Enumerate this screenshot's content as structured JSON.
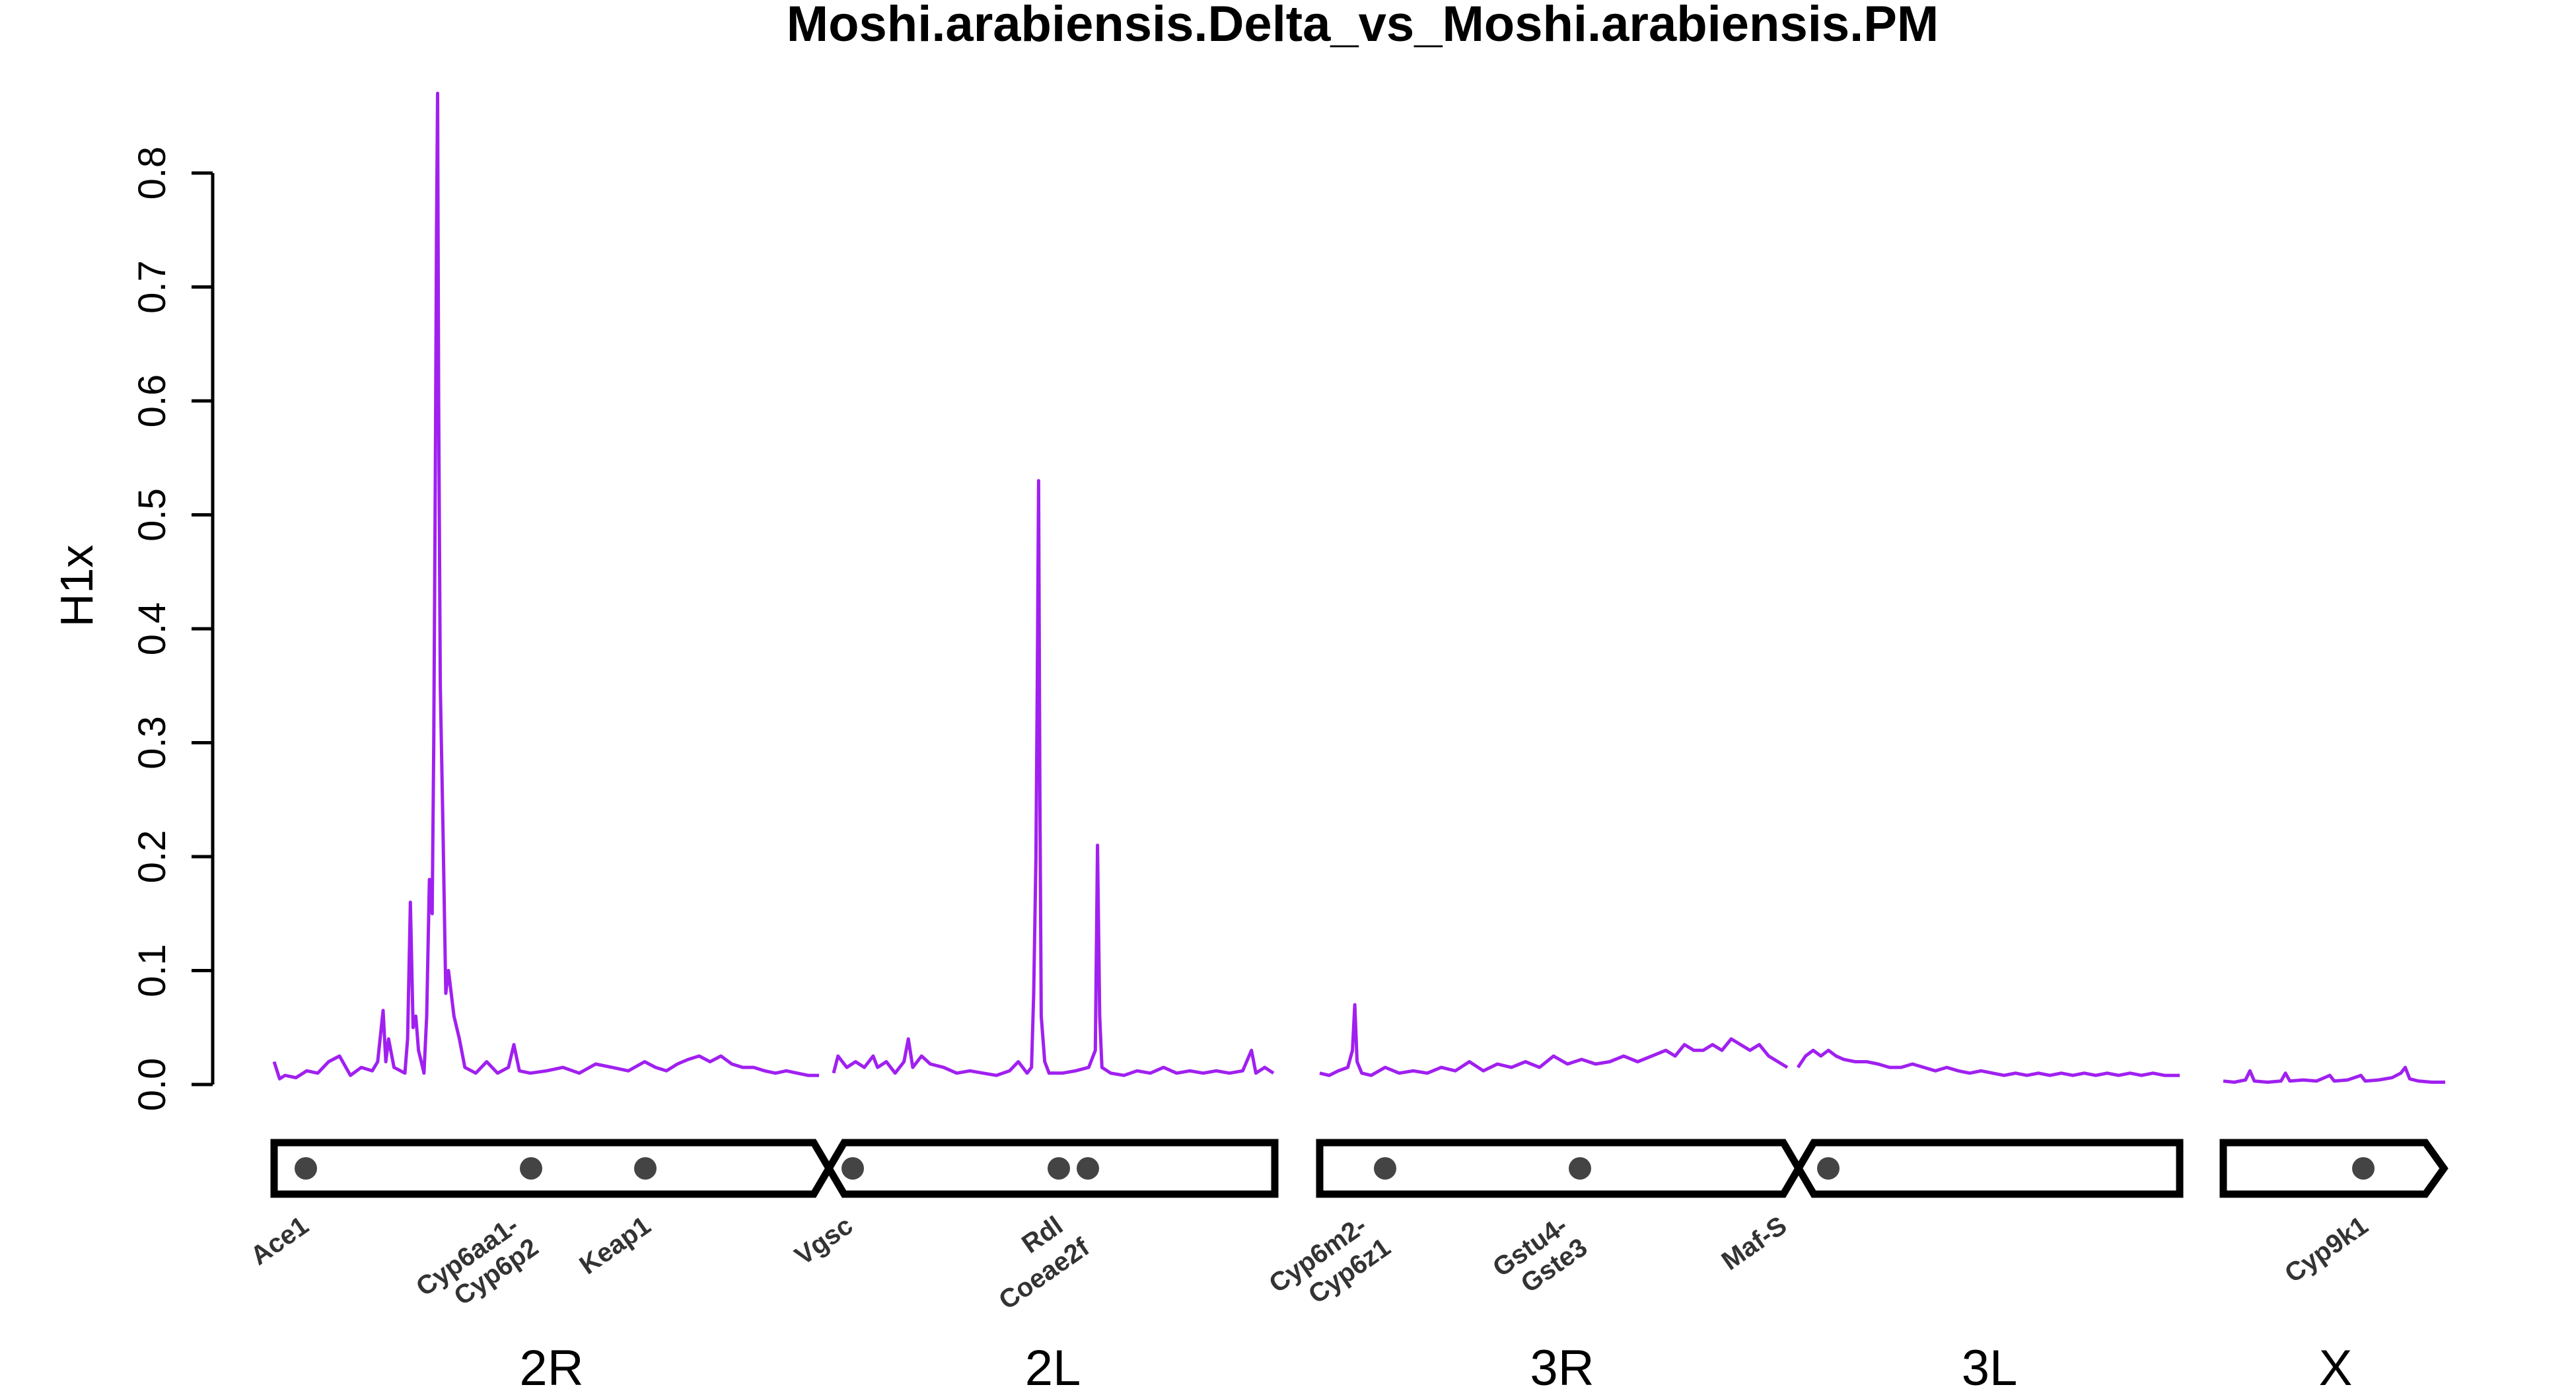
{
  "chart_data": {
    "type": "line",
    "title": "Moshi.arabiensis.Delta_vs_Moshi.arabiensis.PM",
    "ylabel": "H1x",
    "xlabel": "",
    "ylim": [
      0,
      0.8
    ],
    "yticks": [
      "0.0",
      "0.1",
      "0.2",
      "0.3",
      "0.4",
      "0.5",
      "0.6",
      "0.7",
      "0.8"
    ],
    "grid": false,
    "line_color": "#A020F0",
    "chromosomes": [
      {
        "name": "2R",
        "series": [
          [
            0.0,
            0.02
          ],
          [
            0.01,
            0.005
          ],
          [
            0.02,
            0.008
          ],
          [
            0.04,
            0.006
          ],
          [
            0.06,
            0.012
          ],
          [
            0.08,
            0.01
          ],
          [
            0.1,
            0.02
          ],
          [
            0.12,
            0.025
          ],
          [
            0.14,
            0.008
          ],
          [
            0.16,
            0.015
          ],
          [
            0.18,
            0.012
          ],
          [
            0.19,
            0.02
          ],
          [
            0.2,
            0.065
          ],
          [
            0.205,
            0.02
          ],
          [
            0.21,
            0.04
          ],
          [
            0.22,
            0.015
          ],
          [
            0.24,
            0.01
          ],
          [
            0.245,
            0.04
          ],
          [
            0.25,
            0.16
          ],
          [
            0.255,
            0.05
          ],
          [
            0.26,
            0.06
          ],
          [
            0.265,
            0.03
          ],
          [
            0.27,
            0.02
          ],
          [
            0.275,
            0.01
          ],
          [
            0.28,
            0.06
          ],
          [
            0.285,
            0.18
          ],
          [
            0.29,
            0.15
          ],
          [
            0.293,
            0.3
          ],
          [
            0.296,
            0.55
          ],
          [
            0.298,
            0.75
          ],
          [
            0.3,
            0.87
          ],
          [
            0.302,
            0.6
          ],
          [
            0.305,
            0.35
          ],
          [
            0.31,
            0.22
          ],
          [
            0.315,
            0.08
          ],
          [
            0.32,
            0.1
          ],
          [
            0.33,
            0.06
          ],
          [
            0.34,
            0.04
          ],
          [
            0.35,
            0.015
          ],
          [
            0.37,
            0.01
          ],
          [
            0.39,
            0.02
          ],
          [
            0.41,
            0.01
          ],
          [
            0.43,
            0.015
          ],
          [
            0.44,
            0.035
          ],
          [
            0.45,
            0.012
          ],
          [
            0.47,
            0.01
          ],
          [
            0.5,
            0.012
          ],
          [
            0.53,
            0.015
          ],
          [
            0.56,
            0.01
          ],
          [
            0.59,
            0.018
          ],
          [
            0.62,
            0.015
          ],
          [
            0.65,
            0.012
          ],
          [
            0.68,
            0.02
          ],
          [
            0.7,
            0.015
          ],
          [
            0.72,
            0.012
          ],
          [
            0.74,
            0.018
          ],
          [
            0.76,
            0.022
          ],
          [
            0.78,
            0.025
          ],
          [
            0.8,
            0.02
          ],
          [
            0.82,
            0.025
          ],
          [
            0.84,
            0.018
          ],
          [
            0.86,
            0.015
          ],
          [
            0.88,
            0.015
          ],
          [
            0.9,
            0.012
          ],
          [
            0.92,
            0.01
          ],
          [
            0.94,
            0.012
          ],
          [
            0.96,
            0.01
          ],
          [
            0.98,
            0.008
          ],
          [
            1.0,
            0.008
          ]
        ]
      },
      {
        "name": "2L",
        "series": [
          [
            0.0,
            0.01
          ],
          [
            0.01,
            0.025
          ],
          [
            0.02,
            0.02
          ],
          [
            0.03,
            0.015
          ],
          [
            0.05,
            0.02
          ],
          [
            0.07,
            0.015
          ],
          [
            0.09,
            0.025
          ],
          [
            0.1,
            0.015
          ],
          [
            0.12,
            0.02
          ],
          [
            0.14,
            0.01
          ],
          [
            0.16,
            0.02
          ],
          [
            0.17,
            0.04
          ],
          [
            0.18,
            0.015
          ],
          [
            0.2,
            0.025
          ],
          [
            0.22,
            0.018
          ],
          [
            0.25,
            0.015
          ],
          [
            0.28,
            0.01
          ],
          [
            0.31,
            0.012
          ],
          [
            0.34,
            0.01
          ],
          [
            0.37,
            0.008
          ],
          [
            0.4,
            0.012
          ],
          [
            0.42,
            0.02
          ],
          [
            0.44,
            0.01
          ],
          [
            0.45,
            0.015
          ],
          [
            0.455,
            0.08
          ],
          [
            0.46,
            0.2
          ],
          [
            0.463,
            0.35
          ],
          [
            0.466,
            0.53
          ],
          [
            0.469,
            0.25
          ],
          [
            0.472,
            0.06
          ],
          [
            0.48,
            0.02
          ],
          [
            0.49,
            0.01
          ],
          [
            0.52,
            0.01
          ],
          [
            0.55,
            0.012
          ],
          [
            0.58,
            0.015
          ],
          [
            0.595,
            0.03
          ],
          [
            0.6,
            0.21
          ],
          [
            0.605,
            0.06
          ],
          [
            0.61,
            0.015
          ],
          [
            0.63,
            0.01
          ],
          [
            0.66,
            0.008
          ],
          [
            0.69,
            0.012
          ],
          [
            0.72,
            0.01
          ],
          [
            0.75,
            0.015
          ],
          [
            0.78,
            0.01
          ],
          [
            0.81,
            0.012
          ],
          [
            0.84,
            0.01
          ],
          [
            0.87,
            0.012
          ],
          [
            0.9,
            0.01
          ],
          [
            0.93,
            0.012
          ],
          [
            0.95,
            0.03
          ],
          [
            0.96,
            0.01
          ],
          [
            0.98,
            0.015
          ],
          [
            1.0,
            0.01
          ]
        ]
      },
      {
        "name": "3R",
        "series": [
          [
            0.0,
            0.01
          ],
          [
            0.02,
            0.008
          ],
          [
            0.04,
            0.012
          ],
          [
            0.06,
            0.015
          ],
          [
            0.07,
            0.03
          ],
          [
            0.075,
            0.07
          ],
          [
            0.08,
            0.02
          ],
          [
            0.09,
            0.01
          ],
          [
            0.11,
            0.008
          ],
          [
            0.14,
            0.015
          ],
          [
            0.17,
            0.01
          ],
          [
            0.2,
            0.012
          ],
          [
            0.23,
            0.01
          ],
          [
            0.26,
            0.015
          ],
          [
            0.29,
            0.012
          ],
          [
            0.32,
            0.02
          ],
          [
            0.35,
            0.012
          ],
          [
            0.38,
            0.018
          ],
          [
            0.41,
            0.015
          ],
          [
            0.44,
            0.02
          ],
          [
            0.47,
            0.015
          ],
          [
            0.5,
            0.025
          ],
          [
            0.53,
            0.018
          ],
          [
            0.56,
            0.022
          ],
          [
            0.59,
            0.018
          ],
          [
            0.62,
            0.02
          ],
          [
            0.65,
            0.025
          ],
          [
            0.68,
            0.02
          ],
          [
            0.71,
            0.025
          ],
          [
            0.74,
            0.03
          ],
          [
            0.76,
            0.025
          ],
          [
            0.78,
            0.035
          ],
          [
            0.8,
            0.03
          ],
          [
            0.82,
            0.03
          ],
          [
            0.84,
            0.035
          ],
          [
            0.86,
            0.03
          ],
          [
            0.88,
            0.04
          ],
          [
            0.9,
            0.035
          ],
          [
            0.92,
            0.03
          ],
          [
            0.94,
            0.035
          ],
          [
            0.96,
            0.025
          ],
          [
            0.98,
            0.02
          ],
          [
            1.0,
            0.015
          ]
        ]
      },
      {
        "name": "3L",
        "series": [
          [
            0.0,
            0.015
          ],
          [
            0.02,
            0.025
          ],
          [
            0.04,
            0.03
          ],
          [
            0.06,
            0.025
          ],
          [
            0.08,
            0.03
          ],
          [
            0.1,
            0.025
          ],
          [
            0.12,
            0.022
          ],
          [
            0.15,
            0.02
          ],
          [
            0.18,
            0.02
          ],
          [
            0.21,
            0.018
          ],
          [
            0.24,
            0.015
          ],
          [
            0.27,
            0.015
          ],
          [
            0.3,
            0.018
          ],
          [
            0.33,
            0.015
          ],
          [
            0.36,
            0.012
          ],
          [
            0.39,
            0.015
          ],
          [
            0.42,
            0.012
          ],
          [
            0.45,
            0.01
          ],
          [
            0.48,
            0.012
          ],
          [
            0.51,
            0.01
          ],
          [
            0.54,
            0.008
          ],
          [
            0.57,
            0.01
          ],
          [
            0.6,
            0.008
          ],
          [
            0.63,
            0.01
          ],
          [
            0.66,
            0.008
          ],
          [
            0.69,
            0.01
          ],
          [
            0.72,
            0.008
          ],
          [
            0.75,
            0.01
          ],
          [
            0.78,
            0.008
          ],
          [
            0.81,
            0.01
          ],
          [
            0.84,
            0.008
          ],
          [
            0.87,
            0.01
          ],
          [
            0.9,
            0.008
          ],
          [
            0.93,
            0.01
          ],
          [
            0.96,
            0.008
          ],
          [
            1.0,
            0.008
          ]
        ]
      },
      {
        "name": "X",
        "series": [
          [
            0.0,
            0.003
          ],
          [
            0.05,
            0.002
          ],
          [
            0.1,
            0.004
          ],
          [
            0.12,
            0.012
          ],
          [
            0.14,
            0.003
          ],
          [
            0.2,
            0.002
          ],
          [
            0.26,
            0.003
          ],
          [
            0.28,
            0.01
          ],
          [
            0.3,
            0.003
          ],
          [
            0.36,
            0.004
          ],
          [
            0.42,
            0.003
          ],
          [
            0.48,
            0.008
          ],
          [
            0.5,
            0.003
          ],
          [
            0.56,
            0.004
          ],
          [
            0.62,
            0.008
          ],
          [
            0.64,
            0.003
          ],
          [
            0.7,
            0.004
          ],
          [
            0.76,
            0.006
          ],
          [
            0.8,
            0.01
          ],
          [
            0.82,
            0.015
          ],
          [
            0.84,
            0.005
          ],
          [
            0.88,
            0.003
          ],
          [
            0.94,
            0.002
          ],
          [
            1.0,
            0.002
          ]
        ]
      }
    ],
    "genes": [
      {
        "label": "Ace1"
      },
      {
        "label": "Cyp6aa1-"
      },
      {
        "label": "Cyp6p2"
      },
      {
        "label": "Keap1"
      },
      {
        "label": "Vgsc"
      },
      {
        "label": "Rdl"
      },
      {
        "label": "Coeae2f"
      },
      {
        "label": "Cyp6m2-"
      },
      {
        "label": "Cyp6z1"
      },
      {
        "label": "Gstu4-"
      },
      {
        "label": "Gste3"
      },
      {
        "label": "Maf-S"
      },
      {
        "label": "Cyp9k1"
      }
    ]
  }
}
